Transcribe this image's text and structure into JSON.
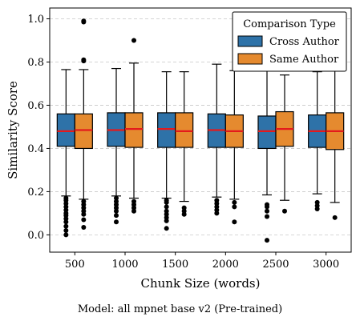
{
  "caption": "Model: all mpnet base v2 (Pre-trained)",
  "chart_data": {
    "type": "box",
    "xlabel": "Chunk Size (words)",
    "ylabel": "Similarity Score",
    "ylim": [
      -0.08,
      1.05
    ],
    "yticks": [
      "0.0",
      "0.2",
      "0.4",
      "0.6",
      "0.8",
      "1.0"
    ],
    "grid": "y-dashed",
    "categories": [
      "500",
      "1000",
      "1500",
      "2000",
      "2500",
      "3000"
    ],
    "legend": {
      "title": "Comparison Type",
      "placement": "top-right",
      "entries": [
        "Cross Author",
        "Same Author"
      ]
    },
    "colors": {
      "Cross Author": "#2e72a8",
      "Same Author": "#e58a2f",
      "median": "#e41a1c"
    },
    "series": [
      {
        "name": "Cross Author",
        "boxes": [
          {
            "whislo": 0.18,
            "q1": 0.41,
            "med": 0.48,
            "q3": 0.56,
            "whishi": 0.765,
            "fliers": [
              0.0,
              0.02,
              0.04,
              0.06,
              0.075,
              0.09,
              0.1,
              0.115,
              0.13,
              0.145,
              0.16,
              0.17
            ]
          },
          {
            "whislo": 0.18,
            "q1": 0.41,
            "med": 0.485,
            "q3": 0.565,
            "whishi": 0.77,
            "fliers": [
              0.06,
              0.09,
              0.11,
              0.125,
              0.14,
              0.155,
              0.17
            ]
          },
          {
            "whislo": 0.17,
            "q1": 0.405,
            "med": 0.49,
            "q3": 0.565,
            "whishi": 0.755,
            "fliers": [
              0.03,
              0.065,
              0.08,
              0.095,
              0.11,
              0.13,
              0.15,
              0.16
            ]
          },
          {
            "whislo": 0.175,
            "q1": 0.405,
            "med": 0.485,
            "q3": 0.56,
            "whishi": 0.79,
            "fliers": [
              0.1,
              0.115,
              0.13,
              0.145,
              0.16
            ]
          },
          {
            "whislo": 0.185,
            "q1": 0.4,
            "med": 0.48,
            "q3": 0.55,
            "whishi": 0.76,
            "fliers": [
              -0.025,
              0.085,
              0.11,
              0.13,
              0.14
            ]
          },
          {
            "whislo": 0.19,
            "q1": 0.405,
            "med": 0.48,
            "q3": 0.555,
            "whishi": 0.755,
            "fliers": [
              0.12,
              0.135,
              0.15
            ]
          }
        ]
      },
      {
        "name": "Same Author",
        "boxes": [
          {
            "whislo": 0.165,
            "q1": 0.4,
            "med": 0.485,
            "q3": 0.56,
            "whishi": 0.765,
            "fliers": [
              0.035,
              0.07,
              0.095,
              0.11,
              0.125,
              0.14,
              0.155,
              0.805,
              0.81,
              0.985,
              0.99
            ]
          },
          {
            "whislo": 0.17,
            "q1": 0.405,
            "med": 0.49,
            "q3": 0.565,
            "whishi": 0.795,
            "fliers": [
              0.11,
              0.125,
              0.14,
              0.155,
              0.9
            ]
          },
          {
            "whislo": 0.155,
            "q1": 0.405,
            "med": 0.48,
            "q3": 0.565,
            "whishi": 0.755,
            "fliers": [
              0.095,
              0.11,
              0.125
            ]
          },
          {
            "whislo": 0.165,
            "q1": 0.405,
            "med": 0.48,
            "q3": 0.555,
            "whishi": 0.76,
            "fliers": [
              0.06,
              0.13,
              0.15
            ]
          },
          {
            "whislo": 0.16,
            "q1": 0.41,
            "med": 0.49,
            "q3": 0.57,
            "whishi": 0.74,
            "fliers": [
              0.11
            ]
          },
          {
            "whislo": 0.15,
            "q1": 0.395,
            "med": 0.48,
            "q3": 0.565,
            "whishi": 0.76,
            "fliers": [
              0.08
            ]
          }
        ]
      }
    ]
  }
}
